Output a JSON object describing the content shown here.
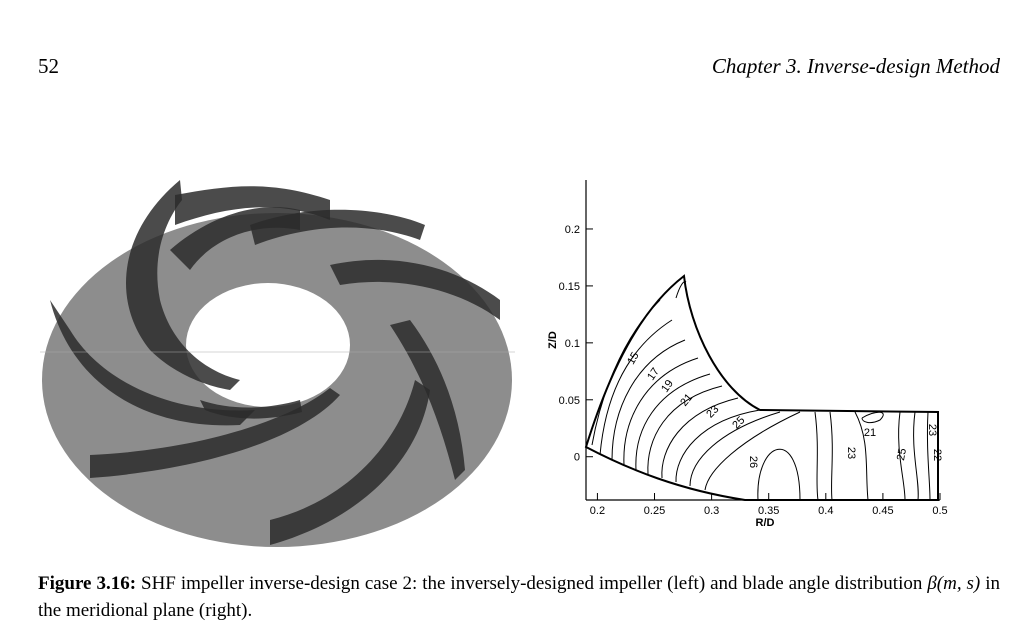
{
  "header": {
    "page_number": "52",
    "chapter": "Chapter 3.  Inverse-design Method"
  },
  "plot": {
    "x_label": "R/D",
    "y_label": "Z/D",
    "xlim": [
      0.19,
      0.5
    ],
    "ylim": [
      -0.038,
      0.243
    ],
    "xticks": [
      0.2,
      0.25,
      0.3,
      0.35,
      0.4,
      0.45,
      0.5
    ],
    "yticks": [
      0,
      0.05,
      0.1,
      0.15,
      0.2
    ],
    "contour_labels": [
      "15",
      "17",
      "19",
      "21",
      "23",
      "25",
      "26",
      "23",
      "21",
      "25",
      "23",
      "22"
    ]
  },
  "caption": {
    "label": "Figure 3.16:",
    "text_before": "SHF impeller inverse-design case 2: the inversely-designed impeller (left) and blade angle distribution ",
    "math": "β(m, s)",
    "text_after": " in the meridional plane (right)."
  }
}
